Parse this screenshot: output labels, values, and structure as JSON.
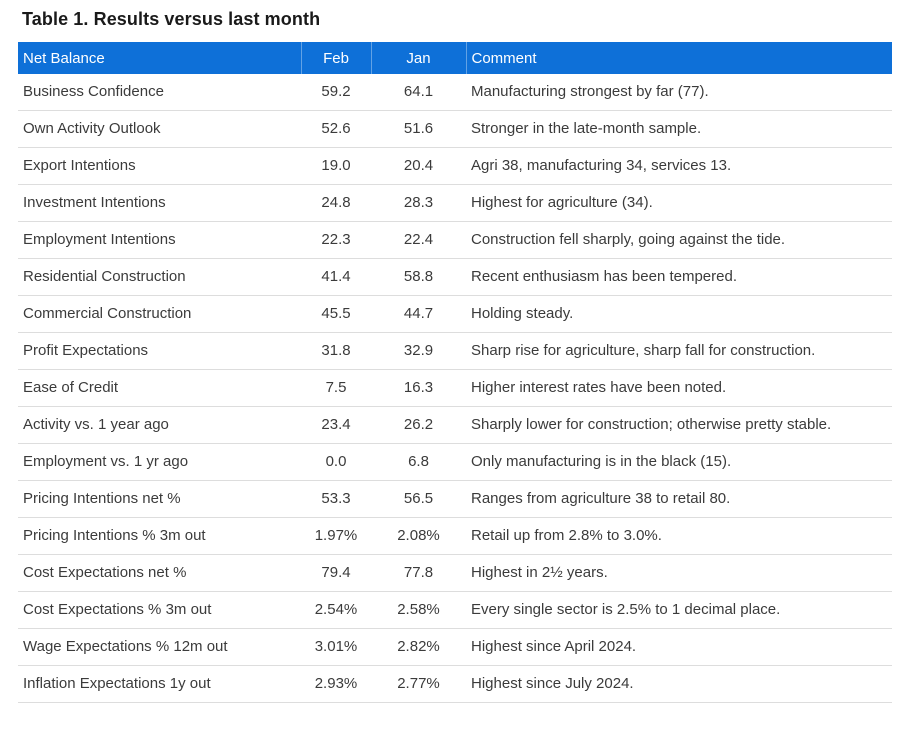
{
  "title": "Table 1. Results versus last month",
  "colors": {
    "header_bg": "#0e70d8",
    "header_text": "#ffffff",
    "row_border": "#dddddd",
    "body_text": "#3b3b3b",
    "title_text": "#1a1a1a"
  },
  "table": {
    "headers": [
      "Net Balance",
      "Feb",
      "Jan",
      "Comment"
    ],
    "rows": [
      {
        "label": "Business Confidence",
        "feb": "59.2",
        "jan": "64.1",
        "comment": "Manufacturing strongest by far (77)."
      },
      {
        "label": "Own Activity Outlook",
        "feb": "52.6",
        "jan": "51.6",
        "comment": "Stronger in the late-month sample."
      },
      {
        "label": "Export Intentions",
        "feb": "19.0",
        "jan": "20.4",
        "comment": "Agri 38, manufacturing 34, services 13."
      },
      {
        "label": "Investment Intentions",
        "feb": "24.8",
        "jan": "28.3",
        "comment": "Highest for agriculture (34)."
      },
      {
        "label": "Employment Intentions",
        "feb": "22.3",
        "jan": "22.4",
        "comment": "Construction fell sharply, going against the tide."
      },
      {
        "label": "Residential Construction",
        "feb": "41.4",
        "jan": "58.8",
        "comment": "Recent enthusiasm has been tempered."
      },
      {
        "label": "Commercial Construction",
        "feb": "45.5",
        "jan": "44.7",
        "comment": "Holding steady."
      },
      {
        "label": "Profit Expectations",
        "feb": "31.8",
        "jan": "32.9",
        "comment": "Sharp rise for agriculture, sharp fall for construction."
      },
      {
        "label": "Ease of Credit",
        "feb": "7.5",
        "jan": "16.3",
        "comment": "Higher interest rates have been noted."
      },
      {
        "label": "Activity vs. 1 year ago",
        "feb": "23.4",
        "jan": "26.2",
        "comment": "Sharply lower for construction; otherwise pretty stable."
      },
      {
        "label": "Employment vs. 1 yr ago",
        "feb": "0.0",
        "jan": "6.8",
        "comment": "Only manufacturing is in the black (15)."
      },
      {
        "label": "Pricing Intentions net %",
        "feb": "53.3",
        "jan": "56.5",
        "comment": "Ranges from agriculture 38 to retail 80."
      },
      {
        "label": "Pricing Intentions % 3m out",
        "feb": "1.97%",
        "jan": "2.08%",
        "comment": "Retail up from 2.8% to 3.0%."
      },
      {
        "label": "Cost Expectations net %",
        "feb": "79.4",
        "jan": "77.8",
        "comment": "Highest in 2½ years."
      },
      {
        "label": "Cost Expectations % 3m out",
        "feb": "2.54%",
        "jan": "2.58%",
        "comment": "Every single sector is 2.5% to 1 decimal place."
      },
      {
        "label": "Wage Expectations % 12m out",
        "feb": "3.01%",
        "jan": "2.82%",
        "comment": "Highest since April 2024."
      },
      {
        "label": "Inflation Expectations 1y out",
        "feb": "2.93%",
        "jan": "2.77%",
        "comment": "Highest since July 2024."
      }
    ]
  }
}
